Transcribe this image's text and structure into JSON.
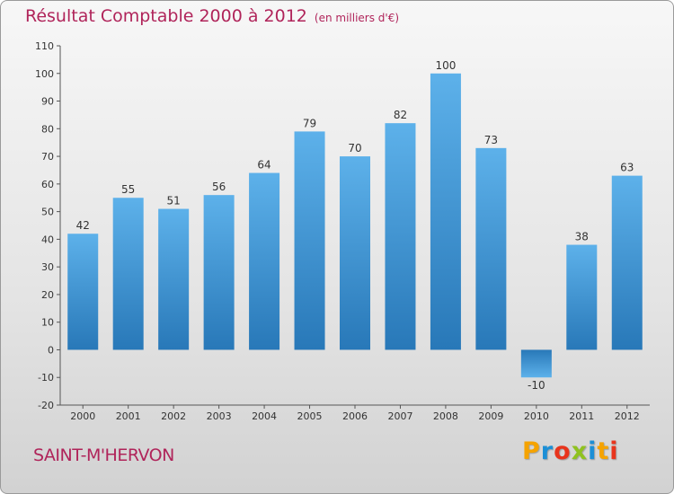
{
  "chart_data": {
    "type": "bar",
    "title": "Résultat Comptable 2000 à 2012",
    "subtitle": "(en milliers d'€)",
    "categories": [
      "2000",
      "2001",
      "2002",
      "2003",
      "2004",
      "2005",
      "2006",
      "2007",
      "2008",
      "2009",
      "2010",
      "2011",
      "2012"
    ],
    "values": [
      42,
      55,
      51,
      56,
      64,
      79,
      70,
      82,
      100,
      73,
      -10,
      38,
      63
    ],
    "ylim": [
      -20,
      110
    ],
    "yticks": [
      -20,
      -10,
      0,
      10,
      20,
      30,
      40,
      50,
      60,
      70,
      80,
      90,
      100,
      110
    ],
    "grid": false,
    "xlabel": "",
    "ylabel": ""
  },
  "footer": {
    "commune": "SAINT-M'HERVON"
  },
  "brand": {
    "letters": [
      "P",
      "r",
      "o",
      "x",
      "i",
      "t",
      "i"
    ],
    "colors": [
      "#f5a300",
      "#1c8fd6",
      "#e8341c",
      "#8fc21f",
      "#1c8fd6",
      "#f5a300",
      "#e8341c"
    ]
  },
  "colors": {
    "title": "#b0245a",
    "bar_top": "#5db1ea",
    "bar_bottom": "#2878b8"
  }
}
